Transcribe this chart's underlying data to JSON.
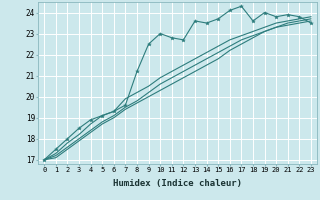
{
  "xlabel": "Humidex (Indice chaleur)",
  "ylabel": "",
  "bg_color": "#cce8ec",
  "grid_color": "#ffffff",
  "line_color": "#2e7d7d",
  "xlim": [
    -0.5,
    23.5
  ],
  "ylim": [
    16.8,
    24.5
  ],
  "yticks": [
    17,
    18,
    19,
    20,
    21,
    22,
    23,
    24
  ],
  "xticks": [
    0,
    1,
    2,
    3,
    4,
    5,
    6,
    7,
    8,
    9,
    10,
    11,
    12,
    13,
    14,
    15,
    16,
    17,
    18,
    19,
    20,
    21,
    22,
    23
  ],
  "series1_x": [
    0,
    1,
    2,
    3,
    4,
    5,
    6,
    7,
    8,
    9,
    10,
    11,
    12,
    13,
    14,
    15,
    16,
    17,
    18,
    19,
    20,
    21,
    22,
    23
  ],
  "series1_y": [
    17.0,
    17.5,
    18.0,
    18.5,
    18.9,
    19.1,
    19.3,
    19.6,
    21.2,
    22.5,
    23.0,
    22.8,
    22.7,
    23.6,
    23.5,
    23.7,
    24.1,
    24.3,
    23.6,
    24.0,
    23.8,
    23.9,
    23.8,
    23.5
  ],
  "series2_x": [
    0,
    1,
    2,
    3,
    4,
    5,
    6,
    7,
    8,
    9,
    10,
    11,
    12,
    13,
    14,
    15,
    16,
    17,
    18,
    19,
    20,
    21,
    22,
    23
  ],
  "series2_y": [
    17.0,
    17.3,
    17.8,
    18.2,
    18.7,
    19.1,
    19.3,
    19.9,
    20.2,
    20.5,
    20.9,
    21.2,
    21.5,
    21.8,
    22.1,
    22.4,
    22.7,
    22.9,
    23.1,
    23.3,
    23.5,
    23.6,
    23.7,
    23.8
  ],
  "series3_x": [
    0,
    1,
    2,
    3,
    4,
    5,
    6,
    7,
    8,
    9,
    10,
    11,
    12,
    13,
    14,
    15,
    16,
    17,
    18,
    19,
    20,
    21,
    22,
    23
  ],
  "series3_y": [
    17.0,
    17.2,
    17.6,
    18.0,
    18.4,
    18.8,
    19.1,
    19.5,
    19.8,
    20.2,
    20.6,
    20.9,
    21.2,
    21.5,
    21.8,
    22.1,
    22.4,
    22.7,
    22.9,
    23.1,
    23.3,
    23.4,
    23.5,
    23.6
  ],
  "series4_x": [
    0,
    1,
    2,
    3,
    4,
    5,
    6,
    7,
    8,
    9,
    10,
    11,
    12,
    13,
    14,
    15,
    16,
    17,
    18,
    19,
    20,
    21,
    22,
    23
  ],
  "series4_y": [
    17.0,
    17.1,
    17.5,
    17.9,
    18.3,
    18.7,
    19.0,
    19.4,
    19.7,
    20.0,
    20.3,
    20.6,
    20.9,
    21.2,
    21.5,
    21.8,
    22.2,
    22.5,
    22.8,
    23.1,
    23.3,
    23.5,
    23.6,
    23.7
  ]
}
